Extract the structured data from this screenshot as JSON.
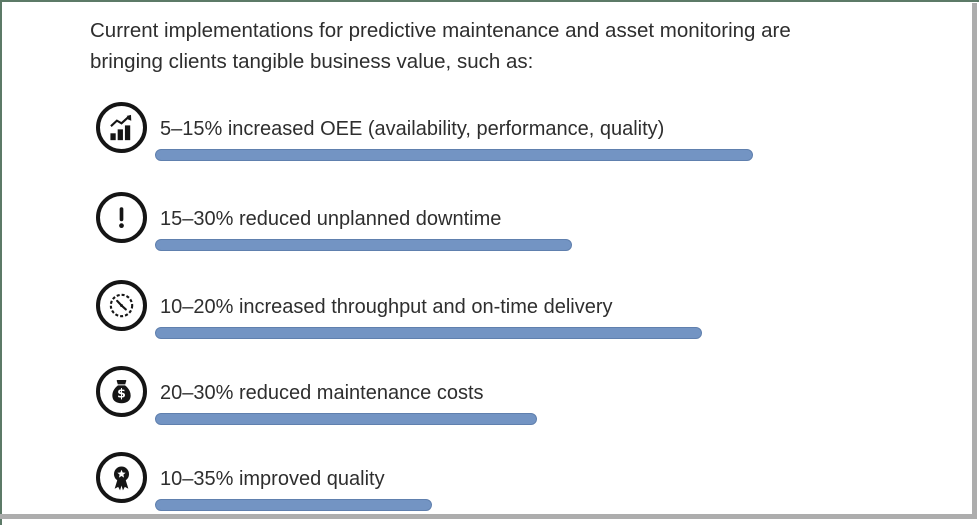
{
  "frame": {
    "border_color": "#5c7a67",
    "shadow_color": "#adadad",
    "background": "#ffffff"
  },
  "header": {
    "line1": "Current implementations for predictive maintenance and asset monitoring are",
    "line2": "bringing clients tangible business value, such as:"
  },
  "benefits": [
    {
      "icon": "trend-chart-icon",
      "text": "5–15% increased OEE (availability, performance, quality)",
      "underline_width": 596
    },
    {
      "icon": "exclamation-icon",
      "text": "15–30% reduced unplanned downtime",
      "underline_width": 415
    },
    {
      "icon": "clock-icon",
      "text": "10–20% increased throughput and on-time delivery",
      "underline_width": 545
    },
    {
      "icon": "money-bag-icon",
      "text": "20–30% reduced maintenance costs",
      "underline_width": 380
    },
    {
      "icon": "award-icon",
      "text": "10–35% improved quality",
      "underline_width": 275
    }
  ],
  "colors": {
    "text": "#2e2e2e",
    "icon": "#151515",
    "underline_fill": "#7394c3",
    "underline_border": "#6080ae"
  }
}
